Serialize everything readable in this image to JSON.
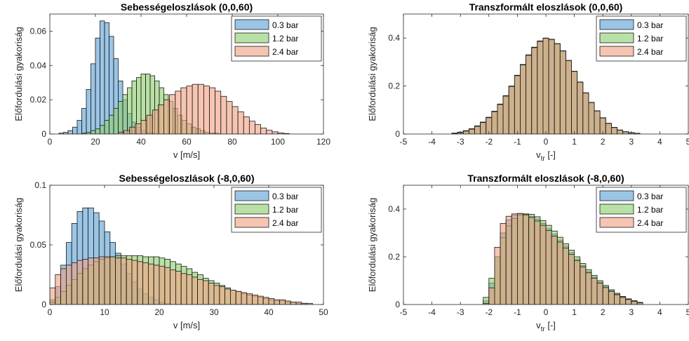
{
  "chart_data": [
    {
      "type": "histogram",
      "title": "Sebességeloszlások (0,0,60)",
      "xlabel": "v [m/s]",
      "ylabel": "Előfordulási gyakoriság",
      "xlim": [
        0,
        120
      ],
      "ylim": [
        0,
        0.07
      ],
      "xticks": [
        0,
        20,
        40,
        60,
        80,
        100,
        120
      ],
      "yticks": [
        0,
        0.02,
        0.04,
        0.06
      ],
      "xtick_labels": [
        "0",
        "20",
        "40",
        "60",
        "80",
        "100",
        "120"
      ],
      "ytick_labels": [
        "0",
        "0.02",
        "0.04",
        "0.06"
      ],
      "legend_position": "top-right",
      "series": [
        {
          "name": "0.3 bar",
          "color": "#5da2d5",
          "bin_start": 4,
          "bin_width": 2,
          "values": [
            0.0005,
            0.001,
            0.002,
            0.004,
            0.008,
            0.015,
            0.026,
            0.041,
            0.056,
            0.066,
            0.065,
            0.057,
            0.044,
            0.031,
            0.02,
            0.012,
            0.007,
            0.004,
            0.002,
            0.001,
            0.0005
          ]
        },
        {
          "name": "1.2 bar",
          "color": "#8fcf6d",
          "bin_start": 14,
          "bin_width": 2,
          "values": [
            0.0005,
            0.001,
            0.002,
            0.003,
            0.005,
            0.008,
            0.011,
            0.015,
            0.019,
            0.023,
            0.027,
            0.031,
            0.033,
            0.035,
            0.035,
            0.034,
            0.031,
            0.027,
            0.023,
            0.019,
            0.015,
            0.011,
            0.008,
            0.006,
            0.004,
            0.003,
            0.002,
            0.001,
            0.0007,
            0.0005
          ]
        },
        {
          "name": "2.4 bar",
          "color": "#f0a283",
          "bin_start": 30,
          "bin_width": 2.5,
          "values": [
            0.001,
            0.002,
            0.004,
            0.006,
            0.008,
            0.011,
            0.014,
            0.017,
            0.02,
            0.023,
            0.025,
            0.027,
            0.028,
            0.029,
            0.029,
            0.028,
            0.027,
            0.025,
            0.022,
            0.019,
            0.016,
            0.013,
            0.01,
            0.0075,
            0.0055,
            0.0035,
            0.0022,
            0.0013,
            0.0007,
            0.0003
          ]
        }
      ]
    },
    {
      "type": "histogram",
      "title": "Transzformált eloszlások (0,0,60)",
      "xlabel": "v",
      "xlabel_sub": "tr",
      "xlabel_suffix": " [-]",
      "ylabel": "Előfordulási gyakoriság",
      "xlim": [
        -5,
        5
      ],
      "ylim": [
        0,
        0.5
      ],
      "xticks": [
        -5,
        -4,
        -3,
        -2,
        -1,
        0,
        1,
        2,
        3,
        4,
        5
      ],
      "yticks": [
        0,
        0.2,
        0.4
      ],
      "xtick_labels": [
        "-5",
        "-4",
        "-3",
        "-2",
        "-1",
        "0",
        "1",
        "2",
        "3",
        "4",
        "5"
      ],
      "ytick_labels": [
        "0",
        "0.2",
        "0.4"
      ],
      "legend_position": "top-right",
      "series": [
        {
          "name": "0.3 bar",
          "color": "#5da2d5",
          "bin_start": -3.3,
          "bin_width": 0.2,
          "values": [
            0.004,
            0.008,
            0.014,
            0.022,
            0.034,
            0.05,
            0.07,
            0.095,
            0.125,
            0.16,
            0.2,
            0.245,
            0.29,
            0.33,
            0.36,
            0.385,
            0.398,
            0.392,
            0.375,
            0.345,
            0.305,
            0.26,
            0.215,
            0.17,
            0.13,
            0.095,
            0.066,
            0.043,
            0.027,
            0.016,
            0.009,
            0.005,
            0.003
          ]
        },
        {
          "name": "1.2 bar",
          "color": "#8fcf6d",
          "bin_start": -3.3,
          "bin_width": 0.2,
          "values": [
            0.003,
            0.007,
            0.013,
            0.021,
            0.033,
            0.049,
            0.069,
            0.094,
            0.124,
            0.159,
            0.199,
            0.244,
            0.289,
            0.329,
            0.362,
            0.388,
            0.4,
            0.395,
            0.377,
            0.347,
            0.307,
            0.262,
            0.217,
            0.172,
            0.132,
            0.097,
            0.068,
            0.045,
            0.028,
            0.017,
            0.01,
            0.006,
            0.003
          ]
        },
        {
          "name": "2.4 bar",
          "color": "#f0a283",
          "bin_start": -3.3,
          "bin_width": 0.2,
          "values": [
            0.003,
            0.006,
            0.012,
            0.02,
            0.032,
            0.048,
            0.068,
            0.093,
            0.123,
            0.158,
            0.198,
            0.243,
            0.288,
            0.328,
            0.36,
            0.386,
            0.399,
            0.394,
            0.376,
            0.346,
            0.306,
            0.261,
            0.216,
            0.171,
            0.131,
            0.096,
            0.067,
            0.044,
            0.027,
            0.016,
            0.009,
            0.005,
            0.003
          ]
        }
      ]
    },
    {
      "type": "histogram",
      "title": "Sebességeloszlások (-8,0,60)",
      "xlabel": "v [m/s]",
      "ylabel": "Előfordulási gyakoriság",
      "xlim": [
        0,
        50
      ],
      "ylim": [
        0,
        0.1
      ],
      "xticks": [
        0,
        10,
        20,
        30,
        40,
        50
      ],
      "yticks": [
        0,
        0.05,
        0.1
      ],
      "xtick_labels": [
        "0",
        "10",
        "20",
        "30",
        "40",
        "50"
      ],
      "ytick_labels": [
        "0",
        "0.05",
        "0.1"
      ],
      "legend_position": "top-right",
      "series": [
        {
          "name": "0.3 bar",
          "color": "#5da2d5",
          "bin_start": 0,
          "bin_width": 1,
          "values": [
            0.004,
            0.015,
            0.033,
            0.052,
            0.068,
            0.078,
            0.081,
            0.081,
            0.077,
            0.07,
            0.061,
            0.052,
            0.043,
            0.034,
            0.026,
            0.019,
            0.013,
            0.009,
            0.006,
            0.004,
            0.002,
            0.001
          ]
        },
        {
          "name": "1.2 bar",
          "color": "#8fcf6d",
          "bin_start": 0,
          "bin_width": 1,
          "values": [
            0.002,
            0.006,
            0.011,
            0.016,
            0.021,
            0.026,
            0.03,
            0.033,
            0.036,
            0.038,
            0.039,
            0.04,
            0.041,
            0.041,
            0.041,
            0.041,
            0.041,
            0.04,
            0.04,
            0.04,
            0.039,
            0.038,
            0.036,
            0.034,
            0.032,
            0.03,
            0.027,
            0.025,
            0.022,
            0.02,
            0.018,
            0.016,
            0.014,
            0.012,
            0.011,
            0.009,
            0.008,
            0.007,
            0.006,
            0.005,
            0.004,
            0.003,
            0.003,
            0.002,
            0.002,
            0.001,
            0.001
          ]
        },
        {
          "name": "2.4 bar",
          "color": "#f0a283",
          "bin_start": 0,
          "bin_width": 1,
          "values": [
            0.014,
            0.025,
            0.03,
            0.033,
            0.035,
            0.037,
            0.038,
            0.039,
            0.039,
            0.04,
            0.04,
            0.04,
            0.039,
            0.039,
            0.038,
            0.037,
            0.036,
            0.035,
            0.034,
            0.033,
            0.032,
            0.031,
            0.029,
            0.028,
            0.026,
            0.025,
            0.023,
            0.021,
            0.02,
            0.018,
            0.016,
            0.015,
            0.013,
            0.012,
            0.011,
            0.01,
            0.009,
            0.008,
            0.007,
            0.006,
            0.005,
            0.004,
            0.004,
            0.003,
            0.002,
            0.002,
            0.001,
            0.001
          ]
        }
      ]
    },
    {
      "type": "histogram",
      "title": "Transzformált eloszlások (-8,0,60)",
      "xlabel": "v",
      "xlabel_sub": "tr",
      "xlabel_suffix": " [-]",
      "ylabel": "Előfordulási gyakoriság",
      "xlim": [
        -5,
        5
      ],
      "ylim": [
        0,
        0.5
      ],
      "xticks": [
        -5,
        -4,
        -3,
        -2,
        -1,
        0,
        1,
        2,
        3,
        4,
        5
      ],
      "yticks": [
        0,
        0.2,
        0.4
      ],
      "xtick_labels": [
        "-5",
        "-4",
        "-3",
        "-2",
        "-1",
        "0",
        "1",
        "2",
        "3",
        "4",
        "5"
      ],
      "ytick_labels": [
        "0",
        "0.2",
        "0.4"
      ],
      "legend_position": "top-right",
      "series": [
        {
          "name": "0.3 bar",
          "color": "#5da2d5",
          "bin_start": -2.2,
          "bin_width": 0.2,
          "values": [
            0.015,
            0.09,
            0.2,
            0.3,
            0.355,
            0.375,
            0.38,
            0.378,
            0.37,
            0.358,
            0.34,
            0.318,
            0.295,
            0.27,
            0.245,
            0.218,
            0.19,
            0.163,
            0.138,
            0.115,
            0.094,
            0.075,
            0.058,
            0.044,
            0.032,
            0.022,
            0.014,
            0.008
          ]
        },
        {
          "name": "1.2 bar",
          "color": "#8fcf6d",
          "bin_start": -2.2,
          "bin_width": 0.2,
          "values": [
            0.03,
            0.11,
            0.2,
            0.28,
            0.33,
            0.36,
            0.375,
            0.38,
            0.378,
            0.368,
            0.352,
            0.332,
            0.308,
            0.282,
            0.255,
            0.228,
            0.2,
            0.172,
            0.146,
            0.122,
            0.1,
            0.08,
            0.062,
            0.047,
            0.034,
            0.024,
            0.016,
            0.009
          ]
        },
        {
          "name": "2.4 bar",
          "color": "#f0a283",
          "bin_start": -2.2,
          "bin_width": 0.2,
          "values": [
            0.005,
            0.07,
            0.24,
            0.34,
            0.37,
            0.38,
            0.382,
            0.376,
            0.365,
            0.35,
            0.332,
            0.31,
            0.287,
            0.262,
            0.237,
            0.21,
            0.184,
            0.158,
            0.133,
            0.11,
            0.09,
            0.071,
            0.055,
            0.041,
            0.03,
            0.021,
            0.013,
            0.007
          ]
        }
      ]
    }
  ]
}
